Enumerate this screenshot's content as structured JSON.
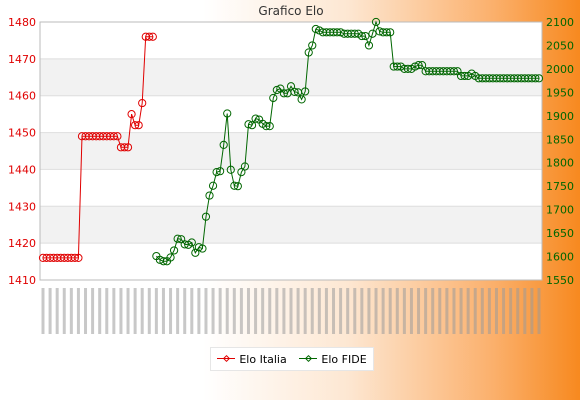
{
  "chart_data": {
    "type": "line",
    "title": "Grafico Elo",
    "xlabel": "",
    "ylabel_left": "",
    "ylabel_right": "",
    "ylim_left": [
      1410,
      1480
    ],
    "yticks_left": [
      1410,
      1420,
      1430,
      1440,
      1450,
      1460,
      1470,
      1480
    ],
    "ylim_right": [
      1550,
      2100
    ],
    "yticks_right": [
      1550,
      1600,
      1650,
      1700,
      1750,
      1800,
      1850,
      1900,
      1950,
      2000,
      2050,
      2100
    ],
    "grid": true,
    "legend_placement": "bottom-center",
    "series": [
      {
        "name": "Elo Italia",
        "color": "#e00000",
        "axis": "left",
        "points": [
          [
            1,
            1416
          ],
          [
            2,
            1416
          ],
          [
            3,
            1416
          ],
          [
            4,
            1416
          ],
          [
            5,
            1416
          ],
          [
            6,
            1416
          ],
          [
            7,
            1416
          ],
          [
            8,
            1416
          ],
          [
            9,
            1416
          ],
          [
            10,
            1416
          ],
          [
            11,
            1416
          ],
          [
            12,
            1449
          ],
          [
            13,
            1449
          ],
          [
            14,
            1449
          ],
          [
            15,
            1449
          ],
          [
            16,
            1449
          ],
          [
            17,
            1449
          ],
          [
            18,
            1449
          ],
          [
            19,
            1449
          ],
          [
            20,
            1449
          ],
          [
            21,
            1449
          ],
          [
            22,
            1449
          ],
          [
            23,
            1446
          ],
          [
            24,
            1446
          ],
          [
            25,
            1446
          ],
          [
            26,
            1455
          ],
          [
            27,
            1452
          ],
          [
            28,
            1452
          ],
          [
            29,
            1458
          ],
          [
            30,
            1476
          ],
          [
            31,
            1476
          ],
          [
            32,
            1476
          ]
        ]
      },
      {
        "name": "Elo FIDE",
        "color": "#006600",
        "axis": "right",
        "points": [
          [
            33,
            1601
          ],
          [
            34,
            1593
          ],
          [
            35,
            1590
          ],
          [
            36,
            1590
          ],
          [
            37,
            1598
          ],
          [
            38,
            1613
          ],
          [
            39,
            1638
          ],
          [
            40,
            1637
          ],
          [
            41,
            1626
          ],
          [
            42,
            1625
          ],
          [
            43,
            1630
          ],
          [
            44,
            1608
          ],
          [
            45,
            1620
          ],
          [
            46,
            1617
          ],
          [
            47,
            1685
          ],
          [
            48,
            1730
          ],
          [
            49,
            1751
          ],
          [
            50,
            1780
          ],
          [
            51,
            1782
          ],
          [
            52,
            1838
          ],
          [
            53,
            1905
          ],
          [
            54,
            1785
          ],
          [
            55,
            1751
          ],
          [
            56,
            1750
          ],
          [
            57,
            1780
          ],
          [
            58,
            1792
          ],
          [
            59,
            1882
          ],
          [
            60,
            1880
          ],
          [
            61,
            1894
          ],
          [
            62,
            1892
          ],
          [
            63,
            1883
          ],
          [
            64,
            1878
          ],
          [
            65,
            1878
          ],
          [
            66,
            1938
          ],
          [
            67,
            1955
          ],
          [
            68,
            1958
          ],
          [
            69,
            1948
          ],
          [
            70,
            1948
          ],
          [
            71,
            1963
          ],
          [
            72,
            1951
          ],
          [
            73,
            1950
          ],
          [
            74,
            1935
          ],
          [
            75,
            1952
          ],
          [
            76,
            2035
          ],
          [
            77,
            2050
          ],
          [
            78,
            2085
          ],
          [
            79,
            2082
          ],
          [
            80,
            2078
          ],
          [
            81,
            2078
          ],
          [
            82,
            2078
          ],
          [
            83,
            2078
          ],
          [
            84,
            2078
          ],
          [
            85,
            2078
          ],
          [
            86,
            2075
          ],
          [
            87,
            2075
          ],
          [
            88,
            2075
          ],
          [
            89,
            2075
          ],
          [
            90,
            2075
          ],
          [
            91,
            2070
          ],
          [
            92,
            2070
          ],
          [
            93,
            2050
          ],
          [
            94,
            2075
          ],
          [
            95,
            2100
          ],
          [
            96,
            2080
          ],
          [
            97,
            2078
          ],
          [
            98,
            2078
          ],
          [
            99,
            2078
          ],
          [
            100,
            2005
          ],
          [
            101,
            2005
          ],
          [
            102,
            2005
          ],
          [
            103,
            2000
          ],
          [
            104,
            2000
          ],
          [
            105,
            2000
          ],
          [
            106,
            2005
          ],
          [
            107,
            2008
          ],
          [
            108,
            2008
          ],
          [
            109,
            1995
          ],
          [
            110,
            1995
          ],
          [
            111,
            1995
          ],
          [
            112,
            1995
          ],
          [
            113,
            1995
          ],
          [
            114,
            1995
          ],
          [
            115,
            1995
          ],
          [
            116,
            1995
          ],
          [
            117,
            1995
          ],
          [
            118,
            1995
          ],
          [
            119,
            1985
          ],
          [
            120,
            1985
          ],
          [
            121,
            1985
          ],
          [
            122,
            1990
          ],
          [
            123,
            1985
          ],
          [
            124,
            1980
          ],
          [
            125,
            1980
          ],
          [
            126,
            1980
          ],
          [
            127,
            1980
          ],
          [
            128,
            1980
          ],
          [
            129,
            1980
          ],
          [
            130,
            1980
          ],
          [
            131,
            1980
          ],
          [
            132,
            1980
          ],
          [
            133,
            1980
          ],
          [
            134,
            1980
          ],
          [
            135,
            1980
          ],
          [
            136,
            1980
          ],
          [
            137,
            1980
          ],
          [
            138,
            1980
          ],
          [
            139,
            1980
          ],
          [
            140,
            1980
          ],
          [
            141,
            1980
          ]
        ]
      }
    ]
  }
}
